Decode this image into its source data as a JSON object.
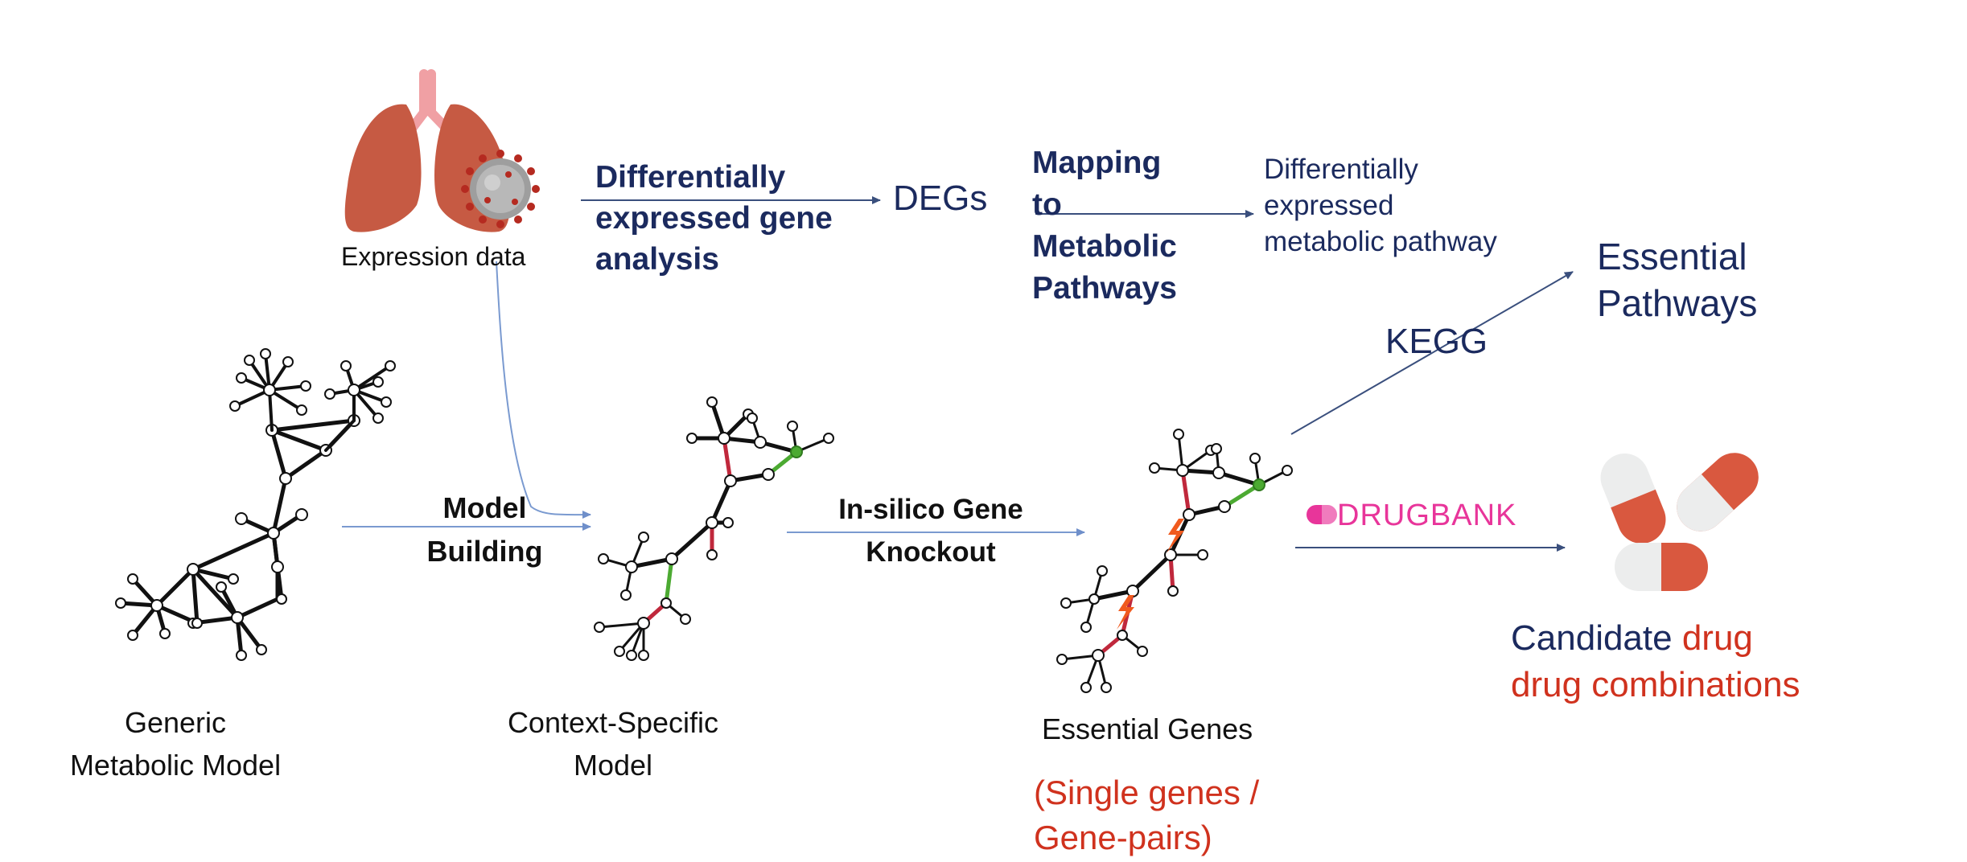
{
  "labels": {
    "expression_data": "Expression data",
    "dea_line1": "Differentially",
    "dea_line2": "expressed gene",
    "dea_line3": "analysis",
    "degs": "DEGs",
    "mapping_line1": "Mapping",
    "mapping_line2": "to",
    "mapping_line3": "Metabolic",
    "mapping_line4": "Pathways",
    "demp_line1": "Differentially",
    "demp_line2": "expressed",
    "demp_line3": "metabolic pathway",
    "essential_pathways_line1": "Essential",
    "essential_pathways_line2": "Pathways",
    "kegg": "KEGG",
    "model_building_line1": "Model",
    "model_building_line2": "Building",
    "knockout_line1": "In-silico Gene",
    "knockout_line2": "Knockout",
    "drugbank": "DRUGBANK",
    "generic_line1": "Generic",
    "generic_line2": "Metabolic Model",
    "context_line1": "Context-Specific",
    "context_line2": "Model",
    "essential_genes": "Essential Genes",
    "single_genes_line1": "(Single genes /",
    "single_genes_line2": "Gene-pairs)",
    "candidate_part1": "Candidate ",
    "candidate_part2": "drug",
    "candidate_line2": "drug combinations"
  },
  "colors": {
    "navy": "#1b2a5e",
    "red": "#d0321e",
    "magenta": "#e8359a",
    "lung": "#c85a45",
    "edge_red": "#c0283c",
    "edge_green": "#4caa32"
  },
  "icons": [
    "lungs-icon",
    "virus-icon",
    "pill-icon",
    "drugbank-logo-icon",
    "lightning-icon"
  ]
}
